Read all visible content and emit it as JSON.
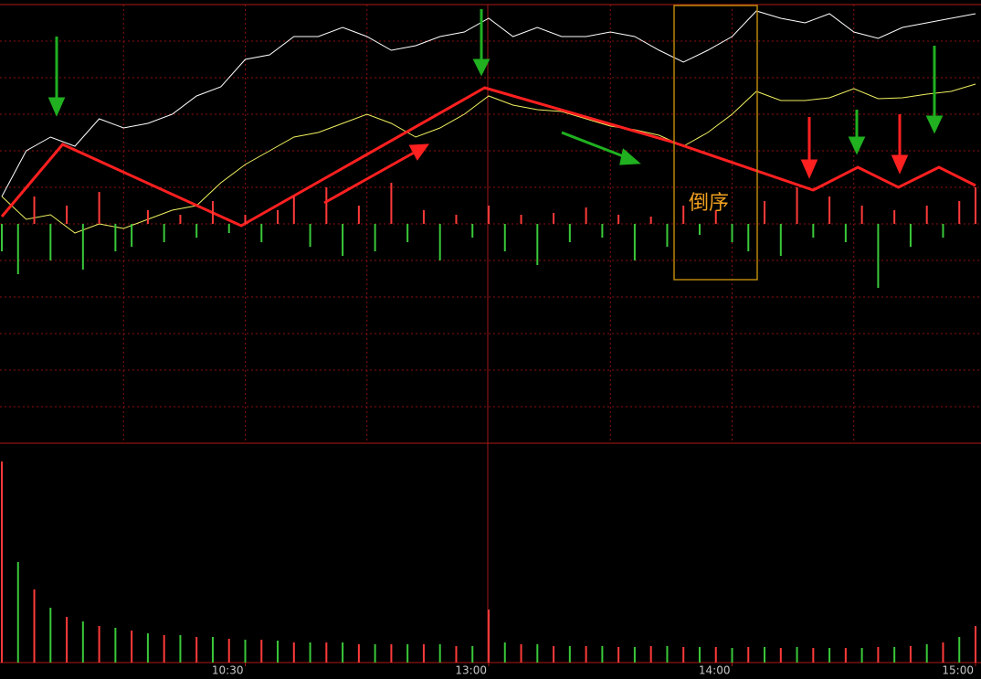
{
  "chart_data": [
    {
      "type": "line",
      "annotation": "倒序",
      "x": [
        0,
        6,
        12,
        18,
        24,
        30,
        36,
        42,
        48,
        54,
        60,
        66,
        72,
        78,
        84,
        90,
        96,
        102,
        108,
        114,
        120,
        126,
        132,
        138,
        144,
        150,
        156,
        162,
        168,
        174,
        180,
        186,
        192,
        198,
        204,
        210,
        216,
        222,
        228,
        234,
        240
      ],
      "xlim": [
        0,
        240
      ],
      "ylim": [
        0,
        480
      ],
      "xgrid": [
        30,
        60,
        90,
        150,
        180,
        210
      ],
      "series": [
        {
          "color": "#ffffff",
          "values": [
            270,
            320,
            335,
            325,
            355,
            345,
            350,
            360,
            380,
            390,
            420,
            425,
            445,
            445,
            455,
            445,
            430,
            435,
            445,
            450,
            465,
            445,
            455,
            445,
            445,
            450,
            445,
            430,
            417,
            430,
            445,
            473,
            465,
            460,
            470,
            450,
            443,
            455,
            460,
            465,
            470
          ]
        },
        {
          "color": "#f0f060",
          "values": [
            270,
            245,
            250,
            230,
            240,
            235,
            245,
            255,
            260,
            285,
            305,
            320,
            335,
            340,
            350,
            360,
            350,
            335,
            345,
            360,
            380,
            370,
            365,
            363,
            355,
            347,
            343,
            337,
            325,
            340,
            360,
            385,
            375,
            375,
            378,
            388,
            377,
            378,
            382,
            385,
            393
          ]
        }
      ]
    },
    {
      "type": "line",
      "x": [
        0,
        15,
        59,
        119,
        165,
        200,
        211,
        221,
        231,
        240
      ],
      "xlim": [
        0,
        240
      ],
      "ylim": [
        0,
        480
      ],
      "series": [
        {
          "color": "#ff2020",
          "values": [
            248,
            327,
            238,
            389,
            330,
            277,
            302,
            280,
            302,
            282
          ]
        }
      ]
    },
    {
      "type": "bar",
      "x": [
        0,
        4,
        8,
        12,
        16,
        20,
        24,
        28,
        32,
        36,
        40,
        44,
        48,
        52,
        56,
        60,
        64,
        68,
        72,
        76,
        80,
        84,
        88,
        92,
        96,
        100,
        104,
        108,
        112,
        116,
        120,
        124,
        128,
        132,
        136,
        140,
        144,
        148,
        152,
        156,
        160,
        164,
        168,
        172,
        176,
        180,
        184,
        188,
        192,
        196,
        200,
        204,
        208,
        212,
        216,
        220,
        224,
        228,
        232,
        236,
        240
      ],
      "xlim": [
        0,
        240
      ],
      "ylim": [
        -240,
        240
      ],
      "colors": [
        "#ff3a3a",
        "#3ac83a"
      ],
      "values": [
        -30,
        -55,
        30,
        -40,
        20,
        -50,
        35,
        -30,
        -25,
        15,
        -20,
        10,
        -15,
        25,
        -10,
        10,
        -20,
        15,
        30,
        -25,
        40,
        -35,
        20,
        -30,
        45,
        -20,
        15,
        -40,
        10,
        -15,
        20,
        -30,
        10,
        -45,
        12,
        -20,
        18,
        -15,
        10,
        -40,
        8,
        -25,
        20,
        -12,
        15,
        -20,
        -30,
        25,
        -35,
        40,
        -15,
        30,
        -20,
        20,
        -70,
        15,
        -25,
        20,
        -15,
        25,
        40
      ]
    },
    {
      "type": "bar",
      "x": [
        0,
        4,
        8,
        12,
        16,
        20,
        24,
        28,
        32,
        36,
        40,
        44,
        48,
        52,
        56,
        60,
        64,
        68,
        72,
        76,
        80,
        84,
        88,
        92,
        96,
        100,
        104,
        108,
        112,
        116,
        120,
        124,
        128,
        132,
        136,
        140,
        144,
        148,
        152,
        156,
        160,
        164,
        168,
        172,
        176,
        180,
        184,
        188,
        192,
        196,
        200,
        204,
        208,
        212,
        216,
        220,
        224,
        228,
        232,
        236,
        240
      ],
      "xlim": [
        0,
        240
      ],
      "ylim": [
        0,
        240
      ],
      "colors": [
        "#ff3a3a",
        "#3ac83a"
      ],
      "xticks": [
        {
          "value": 60,
          "label": "10:30"
        },
        {
          "value": 120,
          "label": "13:00"
        },
        {
          "value": 180,
          "label": "14:00"
        },
        {
          "value": 240,
          "label": "15:00"
        }
      ],
      "values": [
        220,
        110,
        80,
        60,
        50,
        45,
        40,
        38,
        35,
        32,
        30,
        30,
        28,
        28,
        26,
        25,
        25,
        24,
        22,
        22,
        22,
        22,
        20,
        20,
        20,
        20,
        20,
        20,
        18,
        18,
        58,
        22,
        20,
        20,
        18,
        18,
        18,
        18,
        17,
        17,
        18,
        18,
        17,
        17,
        17,
        16,
        17,
        17,
        16,
        17,
        16,
        16,
        16,
        16,
        17,
        17,
        18,
        20,
        22,
        28,
        40
      ]
    }
  ]
}
